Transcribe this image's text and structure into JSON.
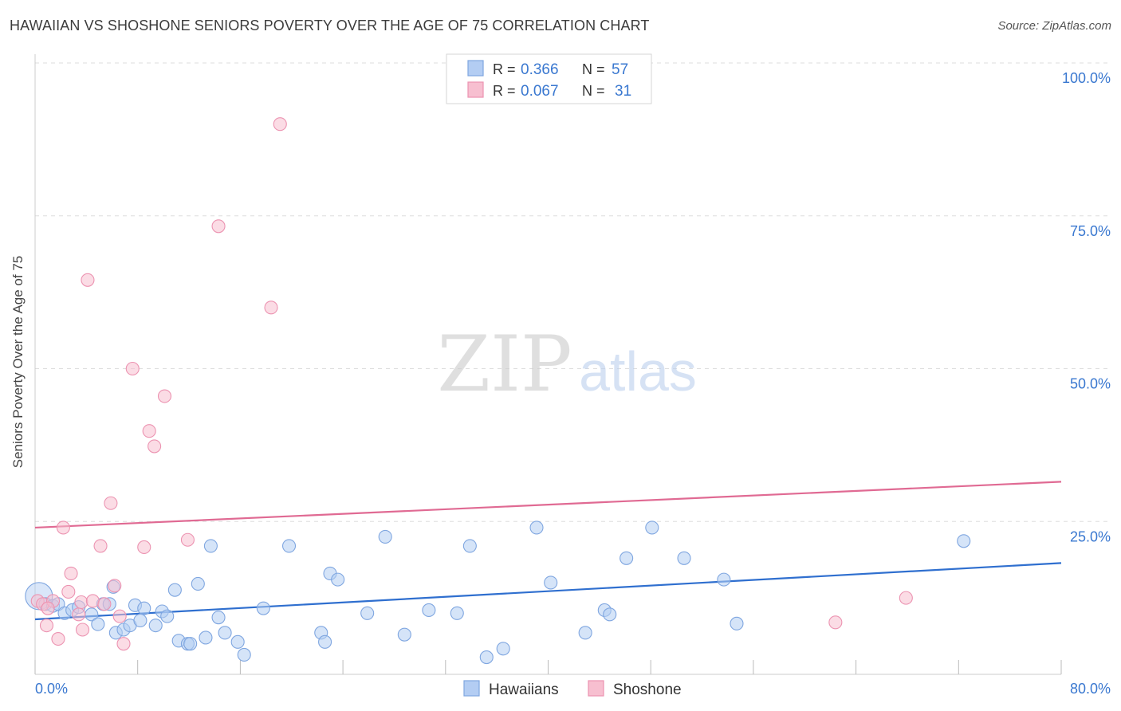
{
  "title": "HAWAIIAN VS SHOSHONE SENIORS POVERTY OVER THE AGE OF 75 CORRELATION CHART",
  "source": "Source: ZipAtlas.com",
  "watermark": {
    "zip": "ZIP",
    "atlas": "atlas"
  },
  "colors": {
    "blue_fill": "#b3cdf3",
    "blue_stroke": "#7fa6e0",
    "blue_line": "#2f6fcf",
    "pink_fill": "#f7bfd0",
    "pink_stroke": "#ec93b1",
    "pink_line": "#e06a93",
    "tick_text": "#3a78d0",
    "grid": "#dddddd"
  },
  "stats_legend": {
    "rows": [
      {
        "r_label": "R =",
        "r_value": "0.366",
        "n_label": "N =",
        "n_value": "57",
        "swatch": "blue"
      },
      {
        "r_label": "R =",
        "r_value": "0.067",
        "n_label": "N =",
        "n_value": "31",
        "swatch": "pink"
      }
    ]
  },
  "chart_data": {
    "type": "scatter",
    "title": "HAWAIIAN VS SHOSHONE SENIORS POVERTY OVER THE AGE OF 75 CORRELATION CHART",
    "xlabel": "",
    "ylabel": "Seniors Poverty Over the Age of 75",
    "xlim": [
      0,
      80
    ],
    "ylim": [
      0,
      100
    ],
    "x_tick_labels": [
      "0.0%",
      "80.0%"
    ],
    "y_tick_values": [
      25,
      50,
      75,
      100
    ],
    "y_tick_labels": [
      "25.0%",
      "50.0%",
      "75.0%",
      "100.0%"
    ],
    "grid": true,
    "legend_position": "bottom-center",
    "series": [
      {
        "name": "Hawaiians",
        "color": "blue",
        "r": 0.366,
        "n": 57,
        "trend": {
          "x": [
            0,
            80
          ],
          "y": [
            9.0,
            18.2
          ]
        },
        "points": [
          [
            0.3,
            12.8
          ],
          [
            0.8,
            11.5
          ],
          [
            1.4,
            11.2
          ],
          [
            1.8,
            11.5
          ],
          [
            2.3,
            10.0
          ],
          [
            2.9,
            10.5
          ],
          [
            3.4,
            11.0
          ],
          [
            4.4,
            9.8
          ],
          [
            4.9,
            8.2
          ],
          [
            5.3,
            11.5
          ],
          [
            5.8,
            11.5
          ],
          [
            6.1,
            14.3
          ],
          [
            6.3,
            6.8
          ],
          [
            6.9,
            7.3
          ],
          [
            7.4,
            8.0
          ],
          [
            7.8,
            11.3
          ],
          [
            8.2,
            8.8
          ],
          [
            8.5,
            10.8
          ],
          [
            9.4,
            8.0
          ],
          [
            9.9,
            10.3
          ],
          [
            10.3,
            9.5
          ],
          [
            10.9,
            13.8
          ],
          [
            11.2,
            5.5
          ],
          [
            11.9,
            5.0
          ],
          [
            12.1,
            5.0
          ],
          [
            12.7,
            14.8
          ],
          [
            13.3,
            6.0
          ],
          [
            13.7,
            21.0
          ],
          [
            14.3,
            9.3
          ],
          [
            14.8,
            6.8
          ],
          [
            15.8,
            5.3
          ],
          [
            16.3,
            3.2
          ],
          [
            17.8,
            10.8
          ],
          [
            19.8,
            21.0
          ],
          [
            22.3,
            6.8
          ],
          [
            22.6,
            5.3
          ],
          [
            23.0,
            16.5
          ],
          [
            23.6,
            15.5
          ],
          [
            25.9,
            10.0
          ],
          [
            27.3,
            22.5
          ],
          [
            28.8,
            6.5
          ],
          [
            30.7,
            10.5
          ],
          [
            32.9,
            10.0
          ],
          [
            33.9,
            21.0
          ],
          [
            35.2,
            2.8
          ],
          [
            36.5,
            4.2
          ],
          [
            39.1,
            24.0
          ],
          [
            40.2,
            15.0
          ],
          [
            42.9,
            6.8
          ],
          [
            44.4,
            10.5
          ],
          [
            44.8,
            9.8
          ],
          [
            46.1,
            19.0
          ],
          [
            48.1,
            24.0
          ],
          [
            50.6,
            19.0
          ],
          [
            53.7,
            15.5
          ],
          [
            54.7,
            8.3
          ],
          [
            72.4,
            21.8
          ]
        ]
      },
      {
        "name": "Shoshone",
        "color": "pink",
        "r": 0.067,
        "n": 31,
        "trend": {
          "x": [
            0,
            80
          ],
          "y": [
            24.0,
            31.5
          ]
        },
        "points": [
          [
            0.2,
            12.0
          ],
          [
            0.6,
            11.5
          ],
          [
            0.9,
            8.0
          ],
          [
            1.4,
            12.0
          ],
          [
            1.8,
            5.8
          ],
          [
            2.2,
            24.0
          ],
          [
            2.6,
            13.5
          ],
          [
            2.8,
            16.5
          ],
          [
            3.4,
            9.8
          ],
          [
            3.6,
            11.8
          ],
          [
            3.7,
            7.3
          ],
          [
            4.1,
            64.5
          ],
          [
            4.5,
            12.0
          ],
          [
            5.1,
            21.0
          ],
          [
            5.4,
            11.5
          ],
          [
            5.9,
            28.0
          ],
          [
            6.2,
            14.5
          ],
          [
            6.6,
            9.5
          ],
          [
            6.9,
            5.0
          ],
          [
            7.6,
            50.0
          ],
          [
            8.5,
            20.8
          ],
          [
            8.9,
            39.8
          ],
          [
            9.3,
            37.3
          ],
          [
            10.1,
            45.5
          ],
          [
            11.9,
            22.0
          ],
          [
            14.3,
            73.3
          ],
          [
            18.4,
            60.0
          ],
          [
            19.1,
            90.0
          ],
          [
            62.4,
            8.5
          ],
          [
            67.9,
            12.5
          ],
          [
            1.0,
            10.8
          ]
        ]
      }
    ]
  }
}
